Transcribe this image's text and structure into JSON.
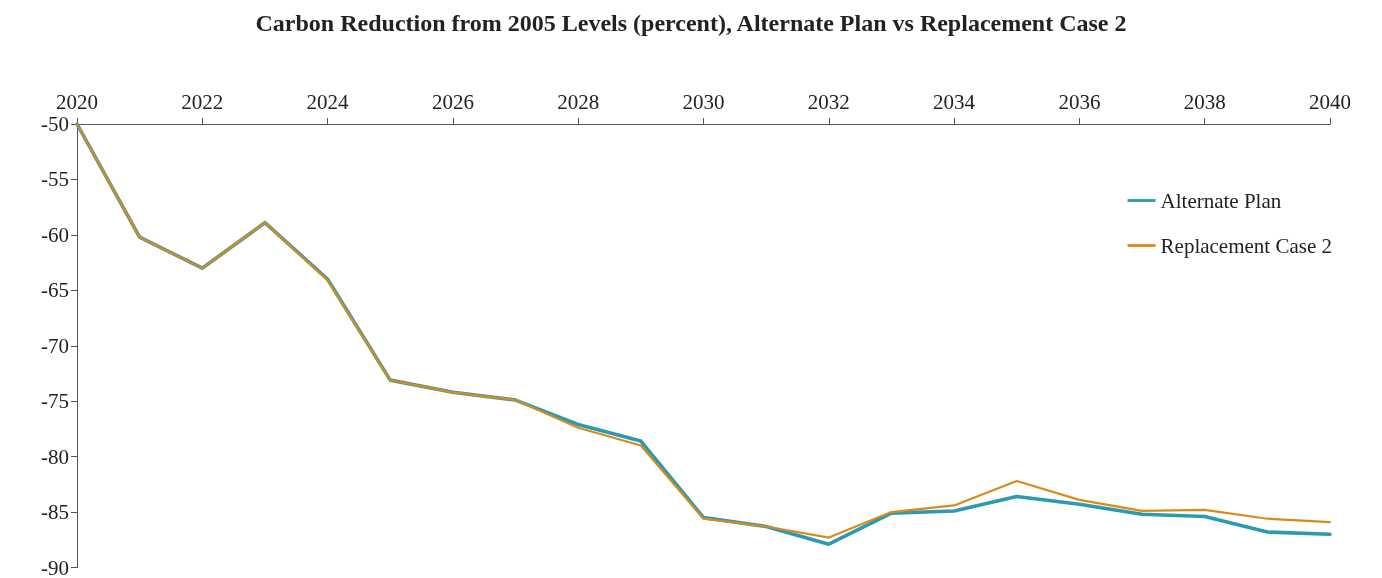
{
  "chart_data": {
    "type": "line",
    "title": "Carbon Reduction from 2005 Levels (percent), Alternate Plan vs Replacement Case 2",
    "x": [
      2020,
      2021,
      2022,
      2023,
      2024,
      2025,
      2026,
      2027,
      2028,
      2029,
      2030,
      2031,
      2032,
      2033,
      2034,
      2035,
      2036,
      2037,
      2038,
      2039,
      2040
    ],
    "series": [
      {
        "name": "Alternate Plan",
        "color": "#2e9ab0",
        "values": [
          -50,
          -60.2,
          -63,
          -58.9,
          -64,
          -73.1,
          -74.2,
          -74.9,
          -77.1,
          -78.6,
          -85.5,
          -86.3,
          -87.9,
          -85.1,
          -84.9,
          -83.6,
          -84.3,
          -85.2,
          -85.4,
          -86.8,
          -87
        ]
      },
      {
        "name": "Replacement Case 2",
        "color": "#d98a1c",
        "values": [
          -50,
          -60.2,
          -63,
          -58.9,
          -64.1,
          -73.1,
          -74.2,
          -74.9,
          -77.4,
          -79,
          -85.6,
          -86.3,
          -87.3,
          -85,
          -84.4,
          -82.2,
          -83.9,
          -84.9,
          -84.8,
          -85.6,
          -85.9
        ]
      }
    ],
    "xlim": [
      2020,
      2040
    ],
    "xticks": [
      2020,
      2022,
      2024,
      2026,
      2028,
      2030,
      2032,
      2034,
      2036,
      2038,
      2040
    ],
    "ylim": [
      -90,
      -50
    ],
    "yticks": [
      -90,
      -85,
      -80,
      -75,
      -70,
      -65,
      -60,
      -55,
      -50
    ],
    "grid": false,
    "legend": "top right",
    "marker": "none",
    "line_style": "solid"
  }
}
